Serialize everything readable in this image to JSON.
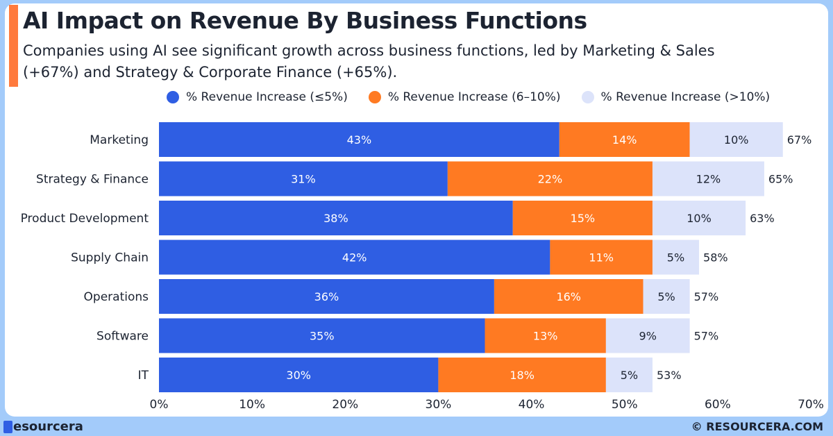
{
  "header": {
    "title": "AI Impact on Revenue By Business Functions",
    "subtitle": "Companies using AI see significant growth across business functions, led by Marketing & Sales (+67%) and Strategy & Corporate Finance (+65%)."
  },
  "footer": {
    "logo": "esourcera",
    "copyright": "© RESOURCERA.COM"
  },
  "colors": {
    "low": "#2f5ee3",
    "mid": "#ff7a22",
    "high": "#dce3fa",
    "accent": "#ff7a3d"
  },
  "chart_data": {
    "type": "bar",
    "orientation": "horizontal",
    "stacked": true,
    "categories": [
      "Marketing",
      "Strategy & Finance",
      "Product Development",
      "Supply Chain",
      "Operations",
      "Software",
      "IT"
    ],
    "series": [
      {
        "name": "% Revenue Increase (≤5%)",
        "values": [
          43,
          31,
          38,
          42,
          36,
          35,
          30
        ]
      },
      {
        "name": "% Revenue Increase (6–10%)",
        "values": [
          14,
          22,
          15,
          11,
          16,
          13,
          18
        ]
      },
      {
        "name": "% Revenue Increase (>10%)",
        "values": [
          10,
          12,
          10,
          5,
          5,
          9,
          5
        ]
      }
    ],
    "totals": [
      67,
      65,
      63,
      58,
      57,
      57,
      53
    ],
    "xlim": [
      0,
      70
    ],
    "xticks": [
      "0%",
      "10%",
      "20%",
      "30%",
      "40%",
      "50%",
      "60%",
      "70%"
    ],
    "legend": "top",
    "grid": false
  }
}
